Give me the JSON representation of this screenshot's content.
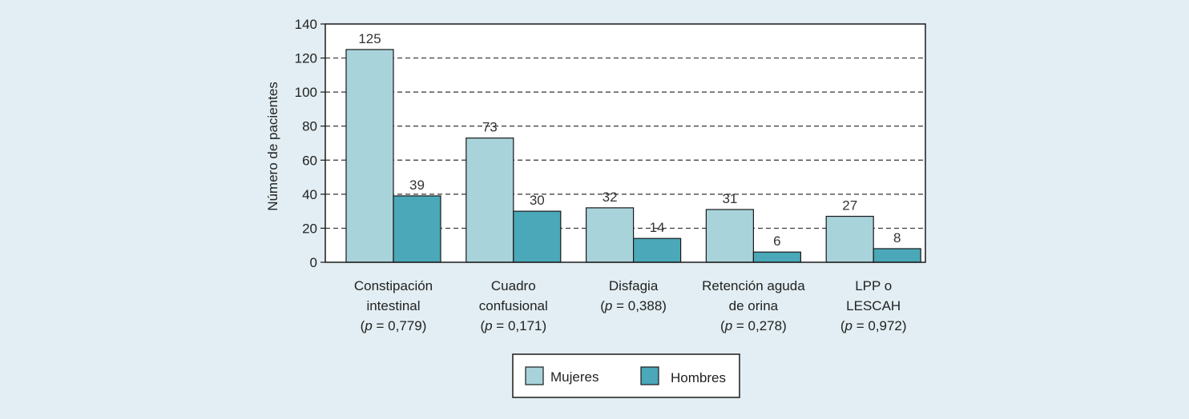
{
  "colors": {
    "background": "#e2eef3",
    "plot_background": "#ffffff",
    "mujeres": "#a9d3db",
    "hombres": "#4aa8b8",
    "bar_outline": "#1a1a1a",
    "grid": "#333333"
  },
  "chart_data": {
    "type": "bar",
    "title": "",
    "xlabel": "",
    "ylabel": "Número de pacientes",
    "ylim": [
      0,
      140
    ],
    "yticks": [
      0,
      20,
      40,
      60,
      80,
      100,
      120,
      140
    ],
    "grid": "dashed horizontal",
    "legend_position": "bottom-center",
    "categories": [
      {
        "lines": [
          "Constipación",
          "intestinal"
        ],
        "p": "0,779"
      },
      {
        "lines": [
          "Cuadro",
          "confusional"
        ],
        "p": "0,171"
      },
      {
        "lines": [
          "Disfagia"
        ],
        "p": "0,388"
      },
      {
        "lines": [
          "Retención aguda",
          "de orina"
        ],
        "p": "0,278"
      },
      {
        "lines": [
          "LPP o",
          "LESCAH"
        ],
        "p": "0,972"
      }
    ],
    "series": [
      {
        "name": "Mujeres",
        "color": "#a9d3db",
        "values": [
          125,
          73,
          32,
          31,
          27
        ]
      },
      {
        "name": "Hombres",
        "color": "#4aa8b8",
        "values": [
          39,
          30,
          14,
          6,
          8
        ]
      }
    ]
  }
}
